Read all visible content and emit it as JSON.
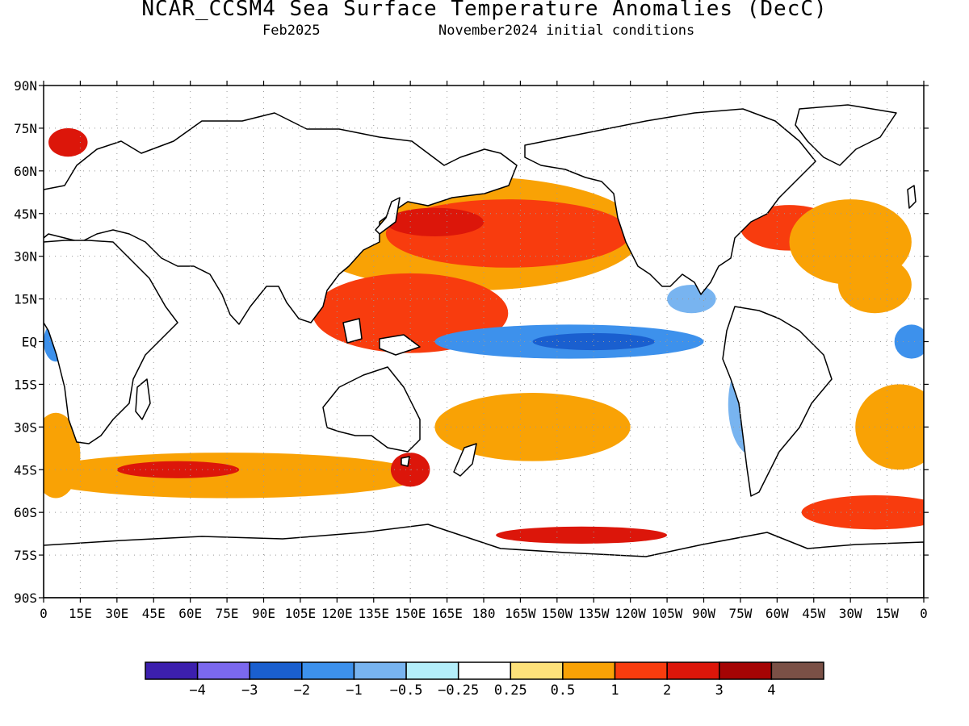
{
  "header": {
    "title": "NCAR_CCSM4 Sea Surface Temperature Anomalies (DecC)",
    "valid": "Feb2025",
    "init": "November2024 initial conditions"
  },
  "map": {
    "lat_ticks": [
      "90N",
      "75N",
      "60N",
      "45N",
      "30N",
      "15N",
      "EQ",
      "15S",
      "30S",
      "45S",
      "60S",
      "75S",
      "90S"
    ],
    "lon_ticks": [
      "0",
      "15E",
      "30E",
      "45E",
      "60E",
      "75E",
      "90E",
      "105E",
      "120E",
      "135E",
      "150E",
      "165E",
      "180",
      "165W",
      "150W",
      "135W",
      "120W",
      "105W",
      "90W",
      "75W",
      "60W",
      "45W",
      "30W",
      "15W",
      "0"
    ],
    "grid": true,
    "lat_range": [
      -90,
      90
    ],
    "lon_range": [
      0,
      360
    ]
  },
  "colorbar": {
    "colors": [
      "#3c1fae",
      "#7b68ee",
      "#1a5fcf",
      "#3d91ec",
      "#78b4f0",
      "#b4eefa",
      "#ffffff",
      "#fde17a",
      "#f9a205",
      "#f83c0e",
      "#dc160a",
      "#a50404",
      "#7a5046"
    ],
    "labels": [
      "−4",
      "−3",
      "−2",
      "−1",
      "−0.5",
      "−0.25",
      "0.25",
      "0.5",
      "1",
      "2",
      "3",
      "4"
    ]
  },
  "anomalies": [
    {
      "lon": 175,
      "lat": 38,
      "level": "warm_0.5",
      "rx": 70,
      "ry": 20
    },
    {
      "lon": 190,
      "lat": 38,
      "level": "warm_1",
      "rx": 50,
      "ry": 12
    },
    {
      "lon": 160,
      "lat": 42,
      "level": "warm_2",
      "rx": 20,
      "ry": 5
    },
    {
      "lon": 150,
      "lat": 10,
      "level": "warm_1",
      "rx": 40,
      "ry": 14
    },
    {
      "lon": 215,
      "lat": 0,
      "level": "cool_1",
      "rx": 55,
      "ry": 6
    },
    {
      "lon": 225,
      "lat": 0,
      "level": "cool_2",
      "rx": 25,
      "ry": 3
    },
    {
      "lon": 305,
      "lat": 40,
      "level": "warm_1",
      "rx": 20,
      "ry": 8
    },
    {
      "lon": 330,
      "lat": 35,
      "level": "warm_0.5",
      "rx": 25,
      "ry": 15
    },
    {
      "lon": 340,
      "lat": 20,
      "level": "warm_0.5",
      "rx": 15,
      "ry": 10
    },
    {
      "lon": 5,
      "lat": 0,
      "level": "cool_1",
      "rx": 5,
      "ry": 7
    },
    {
      "lon": 355,
      "lat": 0,
      "level": "cool_1",
      "rx": 7,
      "ry": 6
    },
    {
      "lon": 75,
      "lat": -47,
      "level": "warm_0.5",
      "rx": 80,
      "ry": 8
    },
    {
      "lon": 55,
      "lat": -45,
      "level": "warm_2",
      "rx": 25,
      "ry": 3
    },
    {
      "lon": 150,
      "lat": -45,
      "level": "warm_2",
      "rx": 8,
      "ry": 6
    },
    {
      "lon": 200,
      "lat": -30,
      "level": "warm_0.5",
      "rx": 40,
      "ry": 12
    },
    {
      "lon": 220,
      "lat": -68,
      "level": "warm_2",
      "rx": 35,
      "ry": 3
    },
    {
      "lon": 350,
      "lat": -30,
      "level": "warm_0.5",
      "rx": 18,
      "ry": 15
    },
    {
      "lon": 5,
      "lat": -40,
      "level": "warm_0.5",
      "rx": 10,
      "ry": 15
    },
    {
      "lon": 290,
      "lat": -22,
      "level": "cool_0.5",
      "rx": 10,
      "ry": 18
    },
    {
      "lon": 265,
      "lat": 15,
      "level": "cool_0.5",
      "rx": 10,
      "ry": 5
    },
    {
      "lon": 340,
      "lat": -60,
      "level": "warm_1",
      "rx": 30,
      "ry": 6
    },
    {
      "lon": 10,
      "lat": 70,
      "level": "warm_2",
      "rx": 8,
      "ry": 5
    }
  ]
}
